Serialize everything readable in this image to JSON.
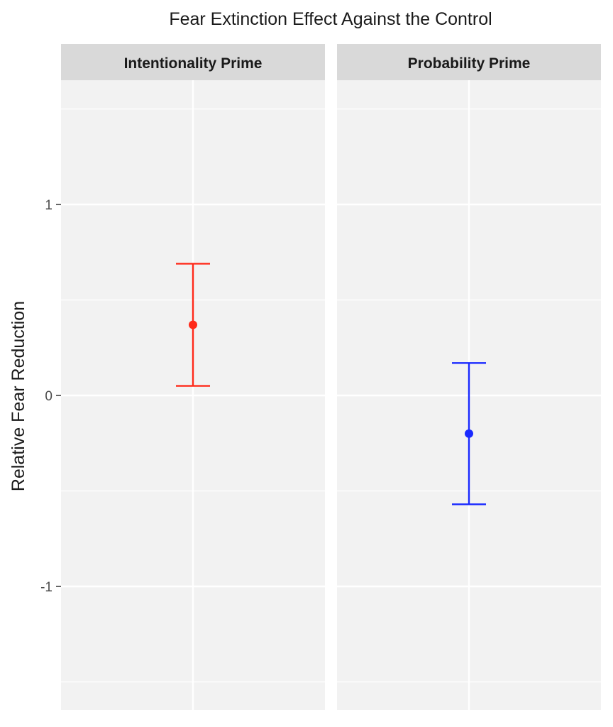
{
  "chart_data": {
    "type": "scatter",
    "title": "Fear Extinction Effect Against the Control",
    "xlabel": "",
    "ylabel": "Relative Fear Reduction",
    "ylim": [
      -1.65,
      1.65
    ],
    "y_ticks": [
      -1,
      0,
      1
    ],
    "y_tick_labels": [
      "-1",
      "0",
      "1"
    ],
    "grid": true,
    "legend": "none",
    "facets": [
      {
        "label": "Intentionality Prime",
        "estimate": 0.37,
        "ci_low": 0.05,
        "ci_high": 0.69,
        "color": "#ff2a1a"
      },
      {
        "label": "Probability Prime",
        "estimate": -0.2,
        "ci_low": -0.57,
        "ci_high": 0.17,
        "color": "#1a2aff"
      }
    ]
  },
  "colors": {
    "panel_background": "#f2f2f2",
    "strip_background": "#d9d9d9",
    "grid": "#ffffff",
    "tick": "#333333"
  }
}
